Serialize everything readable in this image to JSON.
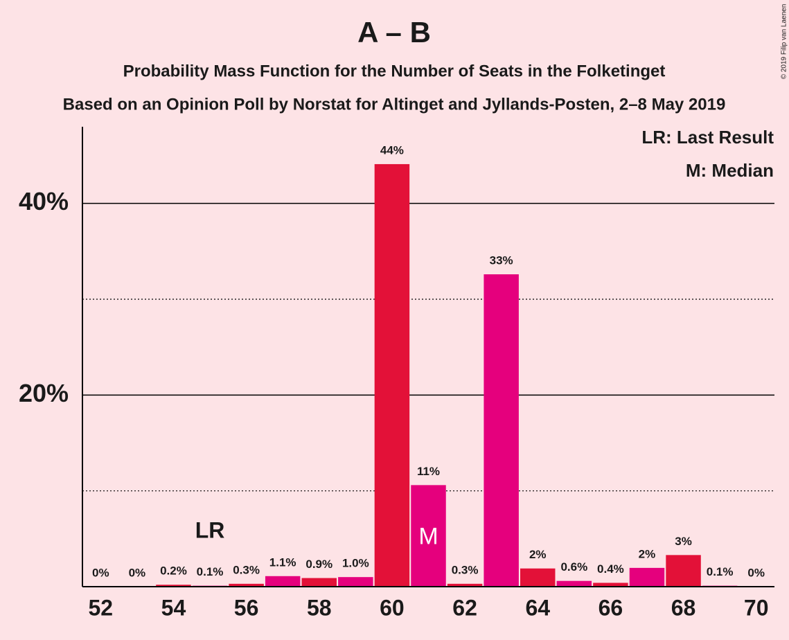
{
  "chart_data": {
    "type": "bar",
    "title": "A – B",
    "subtitles": [
      "Probability Mass Function for the Number of Seats in the Folketinget",
      "Based on an Opinion Poll by Norstat for Altinget and Jyllands-Posten, 2–8 May 2019"
    ],
    "x": [
      52,
      53,
      54,
      55,
      56,
      57,
      58,
      59,
      60,
      61,
      62,
      63,
      64,
      65,
      66,
      67,
      68,
      69,
      70
    ],
    "values": [
      0,
      0,
      0.2,
      0.1,
      0.3,
      1.1,
      0.9,
      1.0,
      44.1,
      10.6,
      0.3,
      32.6,
      1.9,
      0.6,
      0.4,
      1.96,
      3.3,
      0.1,
      0
    ],
    "value_labels": [
      "0%",
      "0%",
      "0.2%",
      "0.1%",
      "0.3%",
      "1.1%",
      "0.9%",
      "1.0%",
      "44%",
      "11%",
      "0.3%",
      "33%",
      "2%",
      "0.6%",
      "0.4%",
      "2%",
      "3%",
      "0.1%",
      "0%"
    ],
    "colors": [
      "#e31138",
      "#e5007d",
      "#e31138",
      "#e5007d",
      "#e31138",
      "#e5007d",
      "#e31138",
      "#e5007d",
      "#e31138",
      "#e5007d",
      "#e31138",
      "#e5007d",
      "#e31138",
      "#e5007d",
      "#e31138",
      "#e5007d",
      "#e31138",
      "#e5007d",
      "#e31138"
    ],
    "xlim": [
      51.5,
      70.5
    ],
    "xticks": [
      52,
      54,
      56,
      58,
      60,
      62,
      64,
      66,
      68,
      70
    ],
    "ylim": [
      0,
      48
    ],
    "yticks": [
      {
        "value": 20,
        "label": "20%"
      },
      {
        "value": 40,
        "label": "40%"
      }
    ],
    "minor_yticks": [
      10,
      30
    ],
    "grid": true,
    "annotations": [
      {
        "text": "LR",
        "x": 55
      },
      {
        "text": "M",
        "x": 61
      }
    ],
    "legend": [
      "LR: Last Result",
      "M: Median"
    ],
    "copyright": "© 2019 Filip van Laenen"
  }
}
